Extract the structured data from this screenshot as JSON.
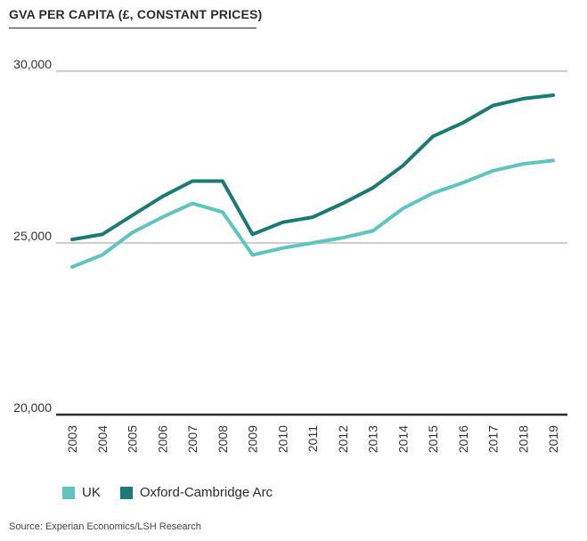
{
  "chart_data": {
    "type": "line",
    "title": "GVA PER CAPITA (£, CONSTANT PRICES)",
    "xlabel": "",
    "ylabel": "",
    "categories": [
      "2003",
      "2004",
      "2005",
      "2006",
      "2007",
      "2008",
      "2009",
      "2010",
      "2011",
      "2012",
      "2013",
      "2014",
      "2015",
      "2016",
      "2017",
      "2018",
      "2019"
    ],
    "ylim": [
      20000,
      30000
    ],
    "yticks": [
      20000,
      25000,
      30000
    ],
    "ytick_labels": [
      "20,000",
      "25,000",
      "30,000"
    ],
    "series": [
      {
        "name": "UK",
        "color": "#5fc4c0",
        "values": [
          24300,
          24650,
          25300,
          25750,
          26150,
          25900,
          24650,
          24850,
          25000,
          25150,
          25350,
          26000,
          26450,
          26750,
          27100,
          27300,
          27400
        ]
      },
      {
        "name": "Oxford-Cambridge Arc",
        "color": "#1b7a73",
        "values": [
          25100,
          25250,
          25800,
          26350,
          26800,
          26800,
          25250,
          25600,
          25750,
          26150,
          26600,
          27250,
          28100,
          28500,
          29000,
          29200,
          29300
        ]
      }
    ],
    "legend_position": "bottom-left"
  },
  "source": "Source: Experian Economics/LSH Research"
}
